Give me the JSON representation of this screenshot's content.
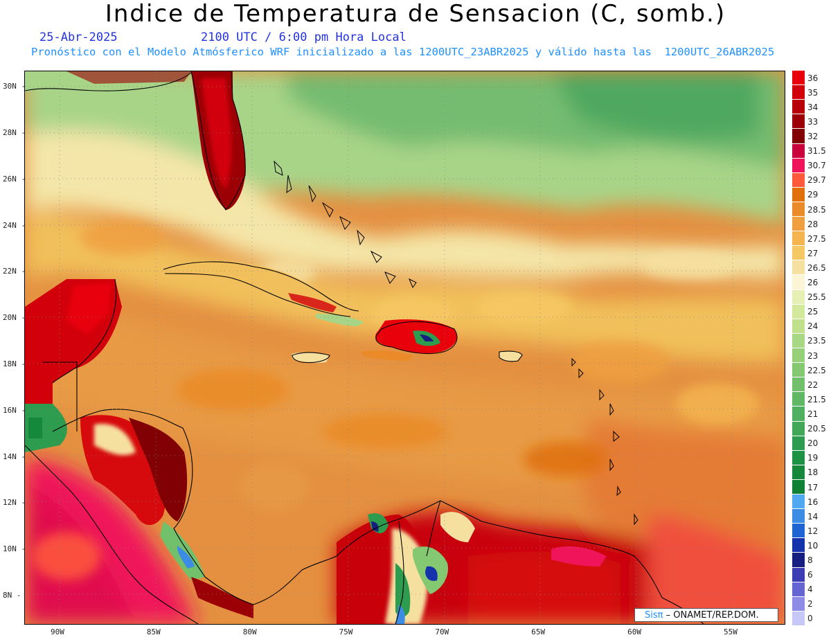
{
  "header": {
    "title": "Indice de Temperatura de Sensacion (C, somb.)",
    "date": "25-Abr-2025",
    "time": "2100 UTC / 6:00 pm Hora Local",
    "model_note": "Pronóstico con el Modelo Atmósferico WRF inicializado a las 1200UTC_23ABR2025 y válido hasta las  1200UTC_26ABR2025"
  },
  "map": {
    "lat_range": [
      6.8,
      30.7
    ],
    "lon_range": [
      -91.8,
      -52.3
    ],
    "lat_ticks": [
      "30N",
      "28N",
      "26N",
      "24N",
      "22N",
      "20N",
      "18N",
      "16N",
      "14N",
      "12N",
      "10N",
      "8N"
    ],
    "lat_tick_values": [
      30,
      28,
      26,
      24,
      22,
      20,
      18,
      16,
      14,
      12,
      10,
      8
    ],
    "lon_ticks": [
      "90W",
      "85W",
      "80W",
      "75W",
      "70W",
      "65W",
      "60W",
      "55W"
    ],
    "lon_tick_values": [
      -90,
      -85,
      -80,
      -75,
      -70,
      -65,
      -60,
      -55
    ]
  },
  "legend": {
    "levels": [
      "36",
      "35",
      "34",
      "33",
      "32",
      "31.5",
      "30.7",
      "29.7",
      "29",
      "28.5",
      "28",
      "27.5",
      "27",
      "26.5",
      "26",
      "25.5",
      "25",
      "24",
      "23.5",
      "23",
      "22.5",
      "22",
      "21.5",
      "21",
      "20.5",
      "20",
      "19",
      "18",
      "17",
      "16",
      "14",
      "12",
      "10",
      "8",
      "6",
      "4",
      "2",
      "0"
    ],
    "colors": [
      "#e8000b",
      "#d2000a",
      "#b80008",
      "#9b0006",
      "#800004",
      "#c8003c",
      "#f0145a",
      "#ff5a3c",
      "#e0700a",
      "#ea8a28",
      "#f0a040",
      "#f4b450",
      "#f6c864",
      "#f6e0a0",
      "#fbf5d6",
      "#e6f0b4",
      "#d2e89a",
      "#c0e08c",
      "#a8d884",
      "#96d07a",
      "#84c872",
      "#72c06c",
      "#60b866",
      "#4eb060",
      "#40a858",
      "#2e9c4e",
      "#1e9244",
      "#16883c",
      "#108034",
      "#50a8f0",
      "#3c8ce6",
      "#1e64d2",
      "#1432aa",
      "#161e80",
      "#3c3cb4",
      "#6464d2",
      "#8c8ce6",
      "#c8c8f8"
    ]
  },
  "credit": {
    "brand": "Sisπ",
    "text": " – ONAMET/REP.DOM."
  }
}
